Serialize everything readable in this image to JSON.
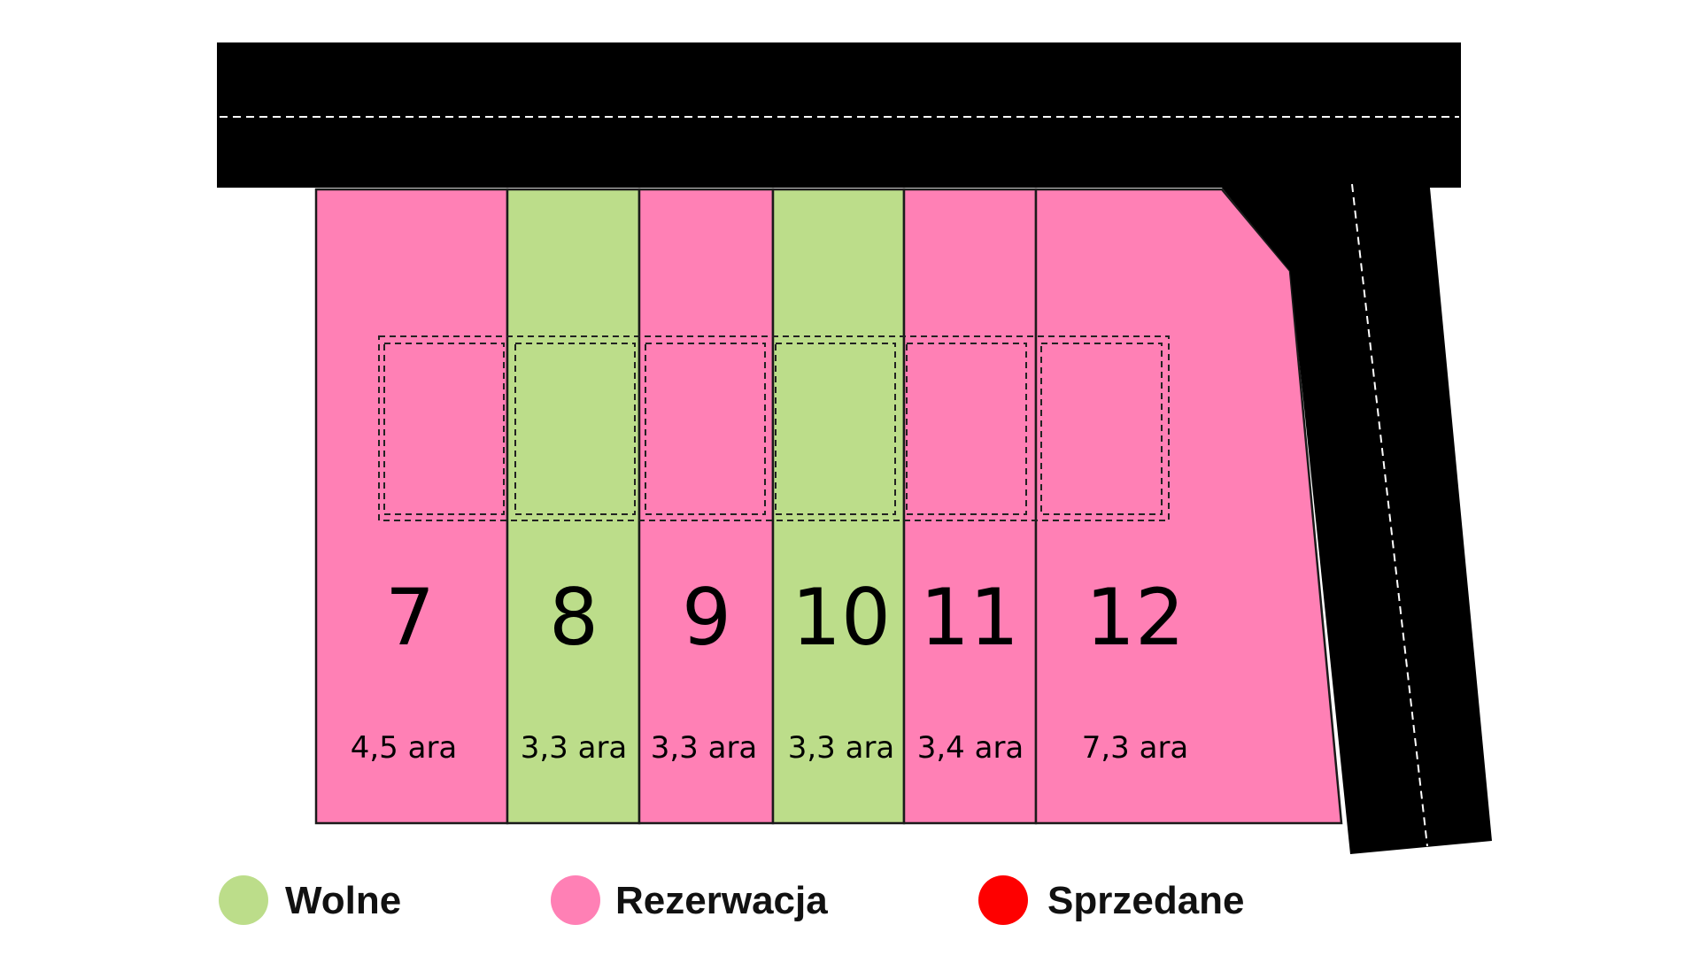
{
  "colors": {
    "free": "#bcdd8a",
    "reserved": "#ff80b5",
    "sold": "#fe0000",
    "road": "#000000",
    "road_marking": "#ffffff",
    "outline": "#1a1a1a"
  },
  "lots": [
    {
      "number": "7",
      "area": "4,5 ara",
      "status": "reserved"
    },
    {
      "number": "8",
      "area": "3,3 ara",
      "status": "free"
    },
    {
      "number": "9",
      "area": "3,3 ara",
      "status": "reserved"
    },
    {
      "number": "10",
      "area": "3,3 ara",
      "status": "free"
    },
    {
      "number": "11",
      "area": "3,4 ara",
      "status": "reserved"
    },
    {
      "number": "12",
      "area": "7,3 ara",
      "status": "reserved"
    }
  ],
  "legend": [
    {
      "label": "Wolne",
      "status": "free"
    },
    {
      "label": "Rezerwacja",
      "status": "reserved"
    },
    {
      "label": "Sprzedane",
      "status": "sold"
    }
  ]
}
